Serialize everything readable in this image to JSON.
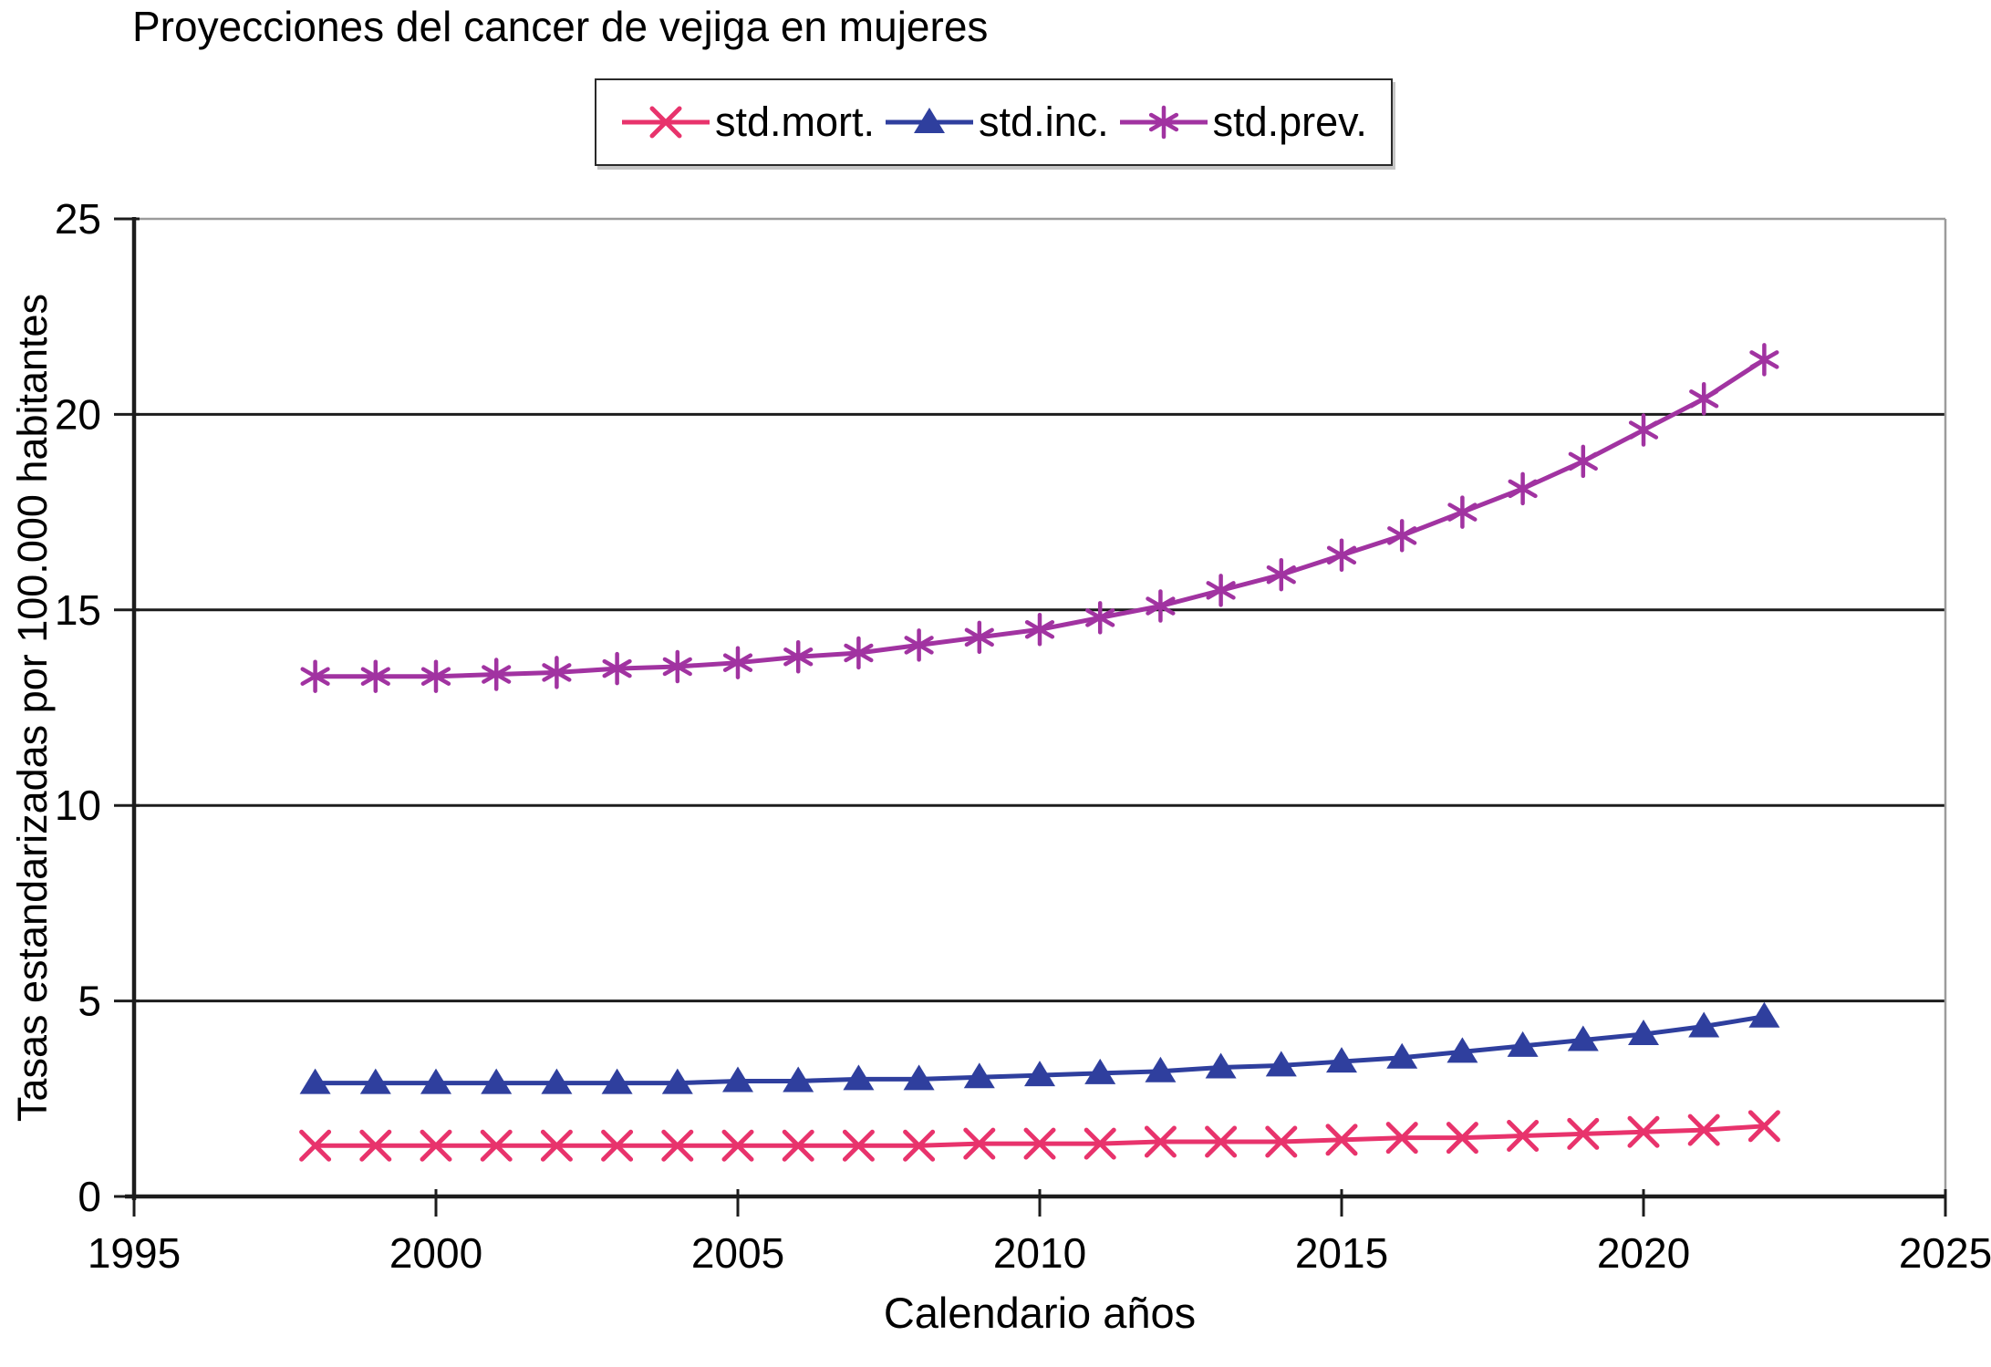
{
  "chart_data": {
    "type": "line",
    "title": "Proyecciones del cancer de vejiga en mujeres",
    "xlabel": "Calendario años",
    "ylabel": "Tasas estandarizadas por 100.000 habitantes",
    "xlim": [
      1995,
      2025
    ],
    "ylim": [
      0,
      25
    ],
    "x_ticks": [
      1995,
      2000,
      2005,
      2010,
      2015,
      2020,
      2025
    ],
    "y_ticks": [
      0,
      5,
      10,
      15,
      20,
      25
    ],
    "grid": "horizontal",
    "legend_position": "top-center",
    "x": [
      1998,
      1999,
      2000,
      2001,
      2002,
      2003,
      2004,
      2005,
      2006,
      2007,
      2008,
      2009,
      2010,
      2011,
      2012,
      2013,
      2014,
      2015,
      2016,
      2017,
      2018,
      2019,
      2020,
      2021,
      2022
    ],
    "series": [
      {
        "name": "std.mort.",
        "marker": "x",
        "color": "#e8336c",
        "values": [
          1.3,
          1.3,
          1.3,
          1.3,
          1.3,
          1.3,
          1.3,
          1.3,
          1.3,
          1.3,
          1.3,
          1.35,
          1.35,
          1.35,
          1.4,
          1.4,
          1.4,
          1.45,
          1.5,
          1.5,
          1.55,
          1.6,
          1.65,
          1.7,
          1.8
        ]
      },
      {
        "name": "std.inc.",
        "marker": "triangle",
        "color": "#2f3f9e",
        "values": [
          2.9,
          2.9,
          2.9,
          2.9,
          2.9,
          2.9,
          2.9,
          2.95,
          2.95,
          3.0,
          3.0,
          3.05,
          3.1,
          3.15,
          3.2,
          3.3,
          3.35,
          3.45,
          3.55,
          3.7,
          3.85,
          4.0,
          4.15,
          4.35,
          4.6
        ]
      },
      {
        "name": "std.prev.",
        "marker": "asterisk",
        "color": "#a133a1",
        "values": [
          13.3,
          13.3,
          13.3,
          13.35,
          13.4,
          13.5,
          13.55,
          13.65,
          13.8,
          13.9,
          14.1,
          14.3,
          14.5,
          14.8,
          15.1,
          15.5,
          15.9,
          16.4,
          16.9,
          17.5,
          18.1,
          18.8,
          19.6,
          20.4,
          21.4
        ]
      }
    ],
    "axis_colors": {
      "grid": "#1c1c1c",
      "boundary": "#9b9b9b",
      "axis": "#1c1c1c"
    }
  }
}
